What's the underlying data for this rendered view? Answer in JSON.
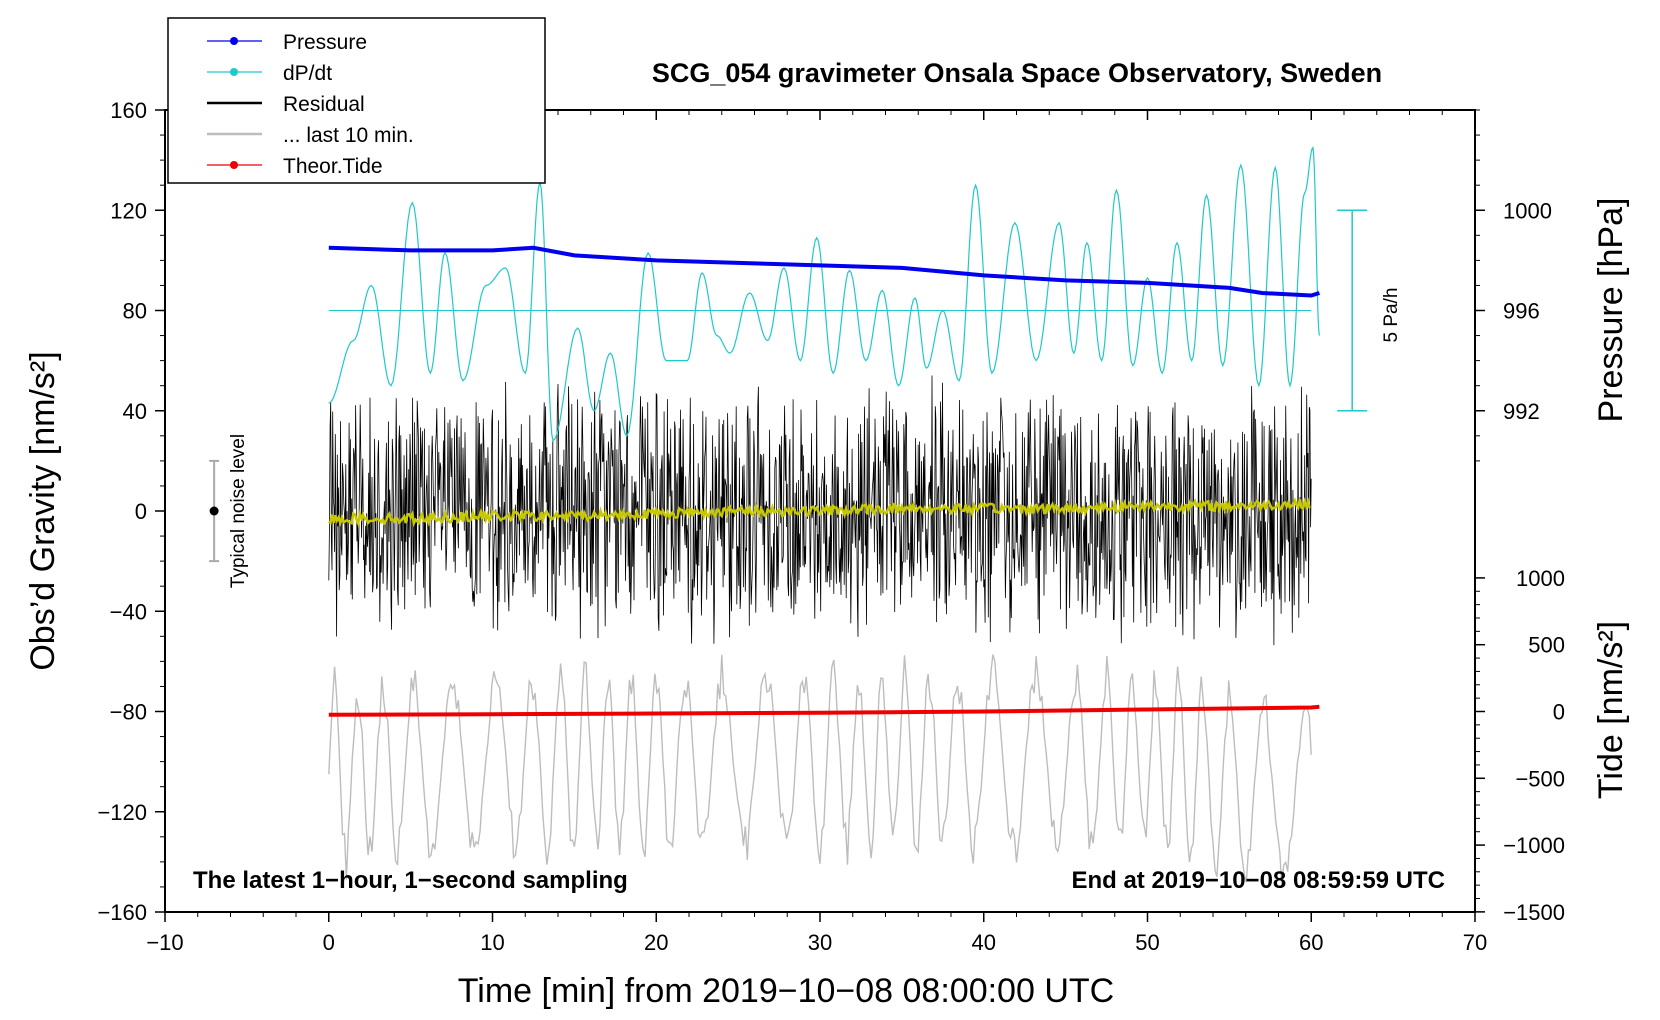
{
  "chart_data": {
    "type": "line",
    "title": "SCG_054 gravimeter Onsala Space Observatory, Sweden",
    "xlabel": "Time [min] from 2019−10−08 08:00:00 UTC",
    "ylabel_left": "Obs’d Gravity [nm/s²]",
    "ylabel_pressure": "Pressure [hPa]",
    "ylabel_tide": "Tide [nm/s²]",
    "xlim": [
      -10,
      70
    ],
    "ylim_left": [
      -160,
      160
    ],
    "x_ticks": [
      "−10",
      "0",
      "10",
      "20",
      "30",
      "40",
      "50",
      "60",
      "70"
    ],
    "x_tick_values": [
      -10,
      0,
      10,
      20,
      30,
      40,
      50,
      60,
      70
    ],
    "y_left_ticks": [
      "160",
      "120",
      "80",
      "40",
      "0",
      "−40",
      "−80",
      "−120",
      "−160"
    ],
    "y_left_tick_values": [
      160,
      120,
      80,
      40,
      0,
      -40,
      -80,
      -120,
      -160
    ],
    "pressure_axis": {
      "ticks": [
        "1000",
        "996",
        "992"
      ],
      "tick_values": [
        1000,
        996,
        992
      ],
      "hpa_ref": 992,
      "left_ref": 40,
      "left_per_hpa": 10
    },
    "tide_axis": {
      "ticks": [
        "1000",
        "500",
        "0",
        "−500",
        "−1000",
        "−1500"
      ],
      "tick_values": [
        1000,
        500,
        0,
        -500,
        -1000,
        -1500
      ],
      "tide_ref": 0,
      "left_ref": -80,
      "left_per_unit": 0.0533
    },
    "legend": {
      "position": "top-left",
      "entries": [
        {
          "label": "Pressure",
          "color": "#0000ee",
          "marker": true
        },
        {
          "label": "dP/dt",
          "color": "#20c8c8",
          "marker": true
        },
        {
          "label": "Residual",
          "color": "#000000",
          "marker": false
        },
        {
          "label": "... last 10 min.",
          "color": "#bdbdbd",
          "marker": false
        },
        {
          "label": "Theor.Tide",
          "color": "#ee0000",
          "marker": true
        }
      ]
    },
    "annotations": {
      "bottom_left": "The latest 1−hour, 1−second sampling",
      "bottom_right": "End at 2019−10−08 08:59:59 UTC",
      "noise_label": "Typical noise level",
      "scale_label": "5 Pa/h"
    },
    "noise_bar": {
      "x": -7,
      "center": 0,
      "half_range": 20
    },
    "scale_bar": {
      "x": 62.5,
      "y_top": 120,
      "y_bottom": 40
    },
    "dpdt_zero_line": 80,
    "series": [
      {
        "name": "Pressure",
        "unit": "hPa",
        "color": "#0000ee",
        "x": [
          0,
          5,
          10,
          12.5,
          15,
          20,
          25,
          30,
          35,
          40,
          45,
          50,
          55,
          57,
          60,
          60.5
        ],
        "values": [
          998.5,
          998.4,
          998.4,
          998.5,
          998.2,
          998.0,
          997.9,
          997.8,
          997.7,
          997.4,
          997.2,
          997.1,
          996.9,
          996.7,
          996.6,
          996.7
        ]
      },
      {
        "name": "dP/dt",
        "unit": "left-axis nm/s² equivalent",
        "color": "#20c8c8",
        "x": [
          0,
          1.5,
          2.6,
          3.8,
          5.1,
          6.2,
          7.1,
          8.2,
          9.6,
          10.8,
          12,
          12.9,
          13.7,
          15.2,
          16.2,
          17.2,
          18.2,
          19.5,
          20.6,
          21.9,
          22.8,
          23.7,
          24.5,
          25.7,
          26.8,
          27.8,
          28.8,
          29.8,
          30.8,
          31.8,
          32.8,
          33.8,
          34.8,
          35.8,
          36.5,
          37.5,
          38.5,
          39.5,
          40.5,
          41.9,
          43.2,
          44.6,
          45.5,
          46.3,
          47.2,
          48.1,
          49.1,
          50,
          50.9,
          51.8,
          52.7,
          53.6,
          54.6,
          55.7,
          56.8,
          57.8,
          58.7,
          59.6,
          60.1,
          60.5
        ],
        "values": [
          43,
          68,
          90,
          50,
          123,
          55,
          103,
          52,
          90,
          97,
          55,
          131,
          28,
          73,
          40,
          63,
          30,
          103,
          60,
          60,
          95,
          70,
          63,
          87,
          68,
          97,
          60,
          109,
          55,
          96,
          60,
          88,
          50,
          85,
          57,
          80,
          52,
          130,
          55,
          115,
          60,
          115,
          63,
          107,
          60,
          128,
          58,
          93,
          55,
          107,
          60,
          126,
          58,
          138,
          50,
          137,
          50,
          127,
          145,
          70
        ]
      },
      {
        "name": "Residual",
        "color": "#000000",
        "x": [
          0,
          10,
          20,
          30,
          40,
          50,
          60
        ],
        "values": [
          0,
          0,
          0,
          0,
          0,
          0,
          0
        ],
        "envelope": [
          [
            -60,
            60
          ]
        ]
      },
      {
        "name": "Residual (smoothed)",
        "color": "#c8c800",
        "x": [
          0,
          5,
          10,
          15,
          20,
          25,
          30,
          35,
          40,
          45,
          50,
          55,
          60
        ],
        "values": [
          -3,
          -3,
          -2,
          -2,
          -1,
          0,
          0,
          1,
          1,
          1,
          2,
          2,
          3
        ]
      },
      {
        "name": "... last 10 min.",
        "color": "#bdbdbd",
        "x": [
          0,
          10,
          20,
          30,
          40,
          50,
          60
        ],
        "values": [
          -105,
          -100,
          -100,
          -100,
          -100,
          -100,
          -116
        ],
        "range": [
          -160,
          -55
        ]
      },
      {
        "name": "Theor.Tide",
        "unit": "nm/s²",
        "color": "#ee0000",
        "x": [
          0,
          10,
          20,
          30,
          40,
          50,
          60,
          60.5
        ],
        "values": [
          -25,
          -20,
          -15,
          -10,
          0,
          15,
          30,
          35
        ]
      }
    ]
  }
}
